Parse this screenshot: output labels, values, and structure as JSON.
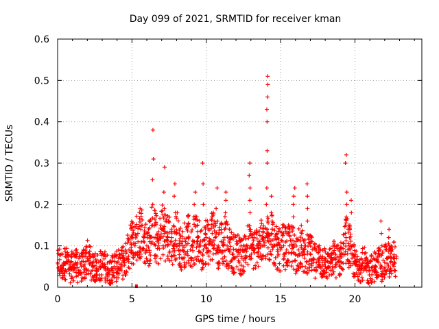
{
  "chart_data": {
    "type": "scatter",
    "title": "Day 099 of 2021, SRMTID for receiver kman",
    "xlabel": "GPS time / hours",
    "ylabel": "SRMTID / TECUs",
    "xlim": [
      0,
      24.5
    ],
    "ylim": [
      0,
      0.6
    ],
    "x_ticks": [
      0,
      5,
      10,
      15,
      20
    ],
    "y_ticks": [
      0,
      0.1,
      0.2,
      0.3,
      0.4,
      0.5,
      0.6
    ],
    "grid": true,
    "marker": "+",
    "series": [
      {
        "name": "SRMTID",
        "color": "#ff0000",
        "x": [
          0.0,
          0.2,
          0.4,
          0.6,
          0.8,
          1.0,
          1.2,
          1.4,
          1.6,
          1.8,
          2.0,
          2.2,
          2.4,
          2.6,
          2.8,
          3.0,
          3.2,
          3.4,
          3.6,
          3.8,
          4.0,
          4.2,
          4.4,
          4.6,
          4.8,
          5.0,
          5.2,
          5.4,
          5.6,
          5.8,
          6.0,
          6.2,
          6.4,
          6.6,
          6.8,
          7.0,
          7.2,
          7.4,
          7.6,
          7.8,
          8.0,
          8.2,
          8.4,
          8.6,
          8.8,
          9.0,
          9.2,
          9.4,
          9.6,
          9.8,
          10.0,
          10.2,
          10.4,
          10.6,
          10.8,
          11.0,
          11.2,
          11.4,
          11.6,
          11.8,
          12.0,
          12.2,
          12.4,
          12.6,
          12.8,
          13.0,
          13.2,
          13.4,
          13.6,
          13.8,
          14.0,
          14.2,
          14.4,
          14.6,
          14.8,
          15.0,
          15.2,
          15.4,
          15.6,
          15.8,
          16.0,
          16.2,
          16.4,
          16.6,
          16.8,
          17.0,
          17.2,
          17.4,
          17.6,
          17.8,
          18.0,
          18.2,
          18.4,
          18.6,
          18.8,
          19.0,
          19.2,
          19.4,
          19.6,
          19.8,
          20.0,
          20.2,
          20.4,
          20.6,
          20.8,
          21.0,
          21.2,
          21.4,
          21.6,
          21.8,
          22.0,
          22.2,
          22.4,
          22.6,
          22.8
        ],
        "y": [
          0.06,
          0.05,
          0.055,
          0.06,
          0.045,
          0.05,
          0.06,
          0.04,
          0.05,
          0.055,
          0.07,
          0.06,
          0.05,
          0.045,
          0.05,
          0.055,
          0.05,
          0.045,
          0.04,
          0.05,
          0.05,
          0.055,
          0.06,
          0.07,
          0.09,
          0.12,
          0.1,
          0.13,
          0.14,
          0.12,
          0.1,
          0.11,
          0.15,
          0.12,
          0.1,
          0.14,
          0.13,
          0.12,
          0.11,
          0.1,
          0.13,
          0.1,
          0.09,
          0.11,
          0.12,
          0.1,
          0.11,
          0.12,
          0.1,
          0.09,
          0.12,
          0.11,
          0.13,
          0.12,
          0.1,
          0.11,
          0.12,
          0.1,
          0.09,
          0.08,
          0.09,
          0.08,
          0.07,
          0.09,
          0.1,
          0.1,
          0.09,
          0.1,
          0.11,
          0.1,
          0.12,
          0.11,
          0.13,
          0.1,
          0.09,
          0.09,
          0.1,
          0.09,
          0.1,
          0.1,
          0.08,
          0.09,
          0.1,
          0.07,
          0.08,
          0.08,
          0.07,
          0.06,
          0.07,
          0.06,
          0.06,
          0.05,
          0.06,
          0.07,
          0.06,
          0.07,
          0.08,
          0.12,
          0.1,
          0.07,
          0.06,
          0.05,
          0.05,
          0.06,
          0.04,
          0.04,
          0.05,
          0.05,
          0.06,
          0.05,
          0.06,
          0.07,
          0.06,
          0.07,
          0.07
        ],
        "spikes": [
          {
            "x": 6.4,
            "values": [
              0.38,
              0.31,
              0.26,
              0.2
            ]
          },
          {
            "x": 7.2,
            "values": [
              0.29,
              0.23,
              0.19,
              0.16
            ]
          },
          {
            "x": 7.9,
            "values": [
              0.25,
              0.22,
              0.18
            ]
          },
          {
            "x": 9.2,
            "values": [
              0.23,
              0.2,
              0.17
            ]
          },
          {
            "x": 9.8,
            "values": [
              0.3,
              0.25,
              0.2
            ]
          },
          {
            "x": 10.7,
            "values": [
              0.24,
              0.19,
              0.16
            ]
          },
          {
            "x": 11.3,
            "values": [
              0.23,
              0.21,
              0.18
            ]
          },
          {
            "x": 12.9,
            "values": [
              0.3,
              0.27,
              0.24,
              0.21,
              0.18
            ]
          },
          {
            "x": 14.1,
            "values": [
              0.51,
              0.49,
              0.46,
              0.43,
              0.4,
              0.33,
              0.3,
              0.24,
              0.2,
              0.17
            ]
          },
          {
            "x": 14.4,
            "values": [
              0.22,
              0.18,
              0.16,
              0.14
            ]
          },
          {
            "x": 15.9,
            "values": [
              0.24,
              0.22,
              0.2,
              0.17
            ]
          },
          {
            "x": 16.8,
            "values": [
              0.25,
              0.22,
              0.19,
              0.16
            ]
          },
          {
            "x": 19.4,
            "values": [
              0.32,
              0.3,
              0.23,
              0.2,
              0.17,
              0.15,
              0.13
            ]
          },
          {
            "x": 19.7,
            "values": [
              0.21,
              0.18,
              0.15
            ]
          },
          {
            "x": 21.8,
            "values": [
              0.16,
              0.13,
              0.1
            ]
          },
          {
            "x": 22.3,
            "values": [
              0.14,
              0.12,
              0.1
            ]
          }
        ]
      }
    ],
    "outlier": {
      "x": 5.3,
      "y": 0.0
    }
  }
}
